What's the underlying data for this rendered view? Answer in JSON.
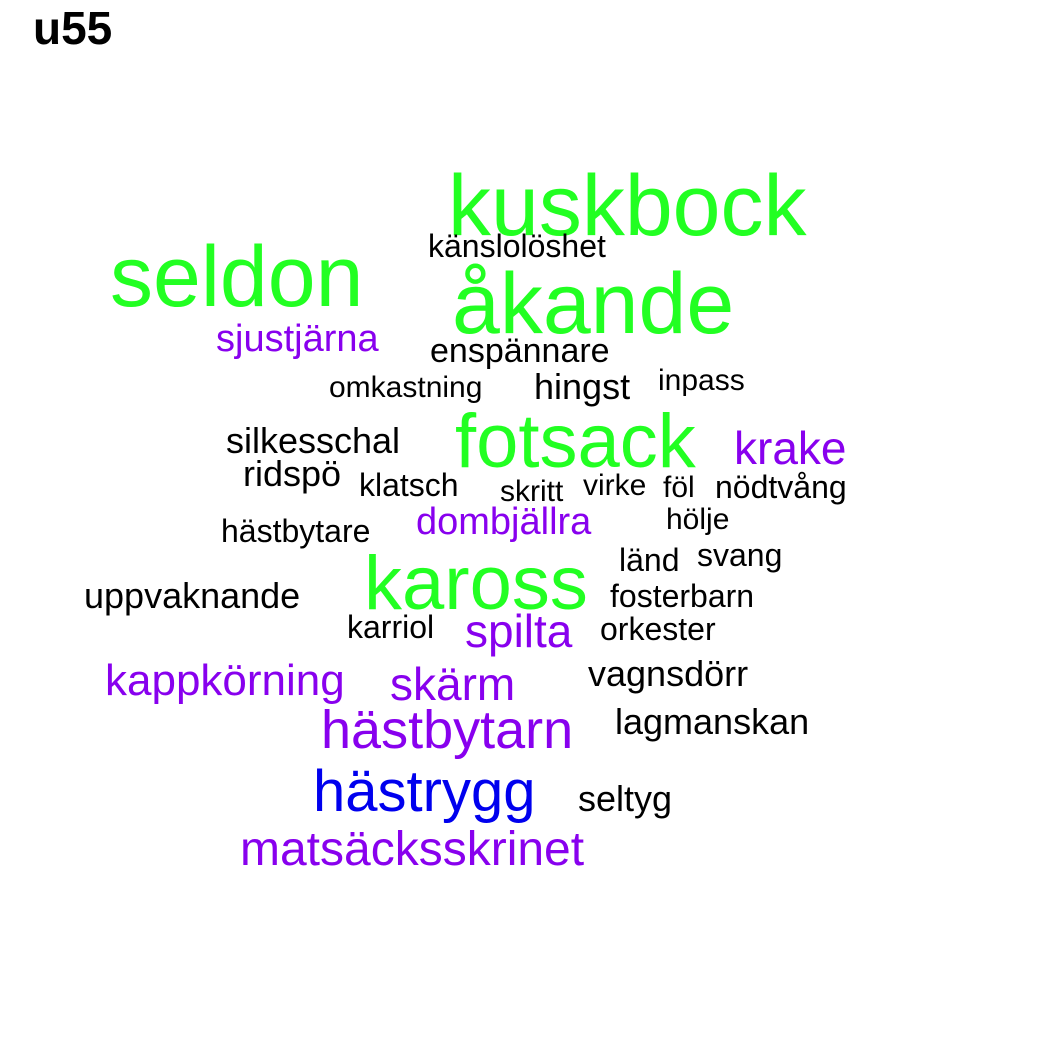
{
  "title": "u55",
  "colors": {
    "green": "#22ff22",
    "purple": "#8800ee",
    "blue": "#0000ee",
    "black": "#000000"
  },
  "words": [
    {
      "text": "kuskbock",
      "color": "#22ff22"
    },
    {
      "text": "seldon",
      "color": "#22ff22"
    },
    {
      "text": "känslolöshet",
      "color": "#000000"
    },
    {
      "text": "åkande",
      "color": "#22ff22"
    },
    {
      "text": "sjustjärna",
      "color": "#8800ee"
    },
    {
      "text": "enspännare",
      "color": "#000000"
    },
    {
      "text": "omkastning",
      "color": "#000000"
    },
    {
      "text": "hingst",
      "color": "#000000"
    },
    {
      "text": "inpass",
      "color": "#000000"
    },
    {
      "text": "silkesschal",
      "color": "#000000"
    },
    {
      "text": "fotsack",
      "color": "#22ff22"
    },
    {
      "text": "krake",
      "color": "#8800ee"
    },
    {
      "text": "ridspö",
      "color": "#000000"
    },
    {
      "text": "klatsch",
      "color": "#000000"
    },
    {
      "text": "skritt",
      "color": "#000000"
    },
    {
      "text": "virke",
      "color": "#000000"
    },
    {
      "text": "föl",
      "color": "#000000"
    },
    {
      "text": "nödtvång",
      "color": "#000000"
    },
    {
      "text": "hästbytare",
      "color": "#000000"
    },
    {
      "text": "dombjällra",
      "color": "#8800ee"
    },
    {
      "text": "hölje",
      "color": "#000000"
    },
    {
      "text": "länd",
      "color": "#000000"
    },
    {
      "text": "svang",
      "color": "#000000"
    },
    {
      "text": "uppvaknande",
      "color": "#000000"
    },
    {
      "text": "kaross",
      "color": "#22ff22"
    },
    {
      "text": "fosterbarn",
      "color": "#000000"
    },
    {
      "text": "karriol",
      "color": "#000000"
    },
    {
      "text": "spilta",
      "color": "#8800ee"
    },
    {
      "text": "orkester",
      "color": "#000000"
    },
    {
      "text": "kappkörning",
      "color": "#8800ee"
    },
    {
      "text": "skärm",
      "color": "#8800ee"
    },
    {
      "text": "vagnsdörr",
      "color": "#000000"
    },
    {
      "text": "hästbytarn",
      "color": "#8800ee"
    },
    {
      "text": "lagmanskan",
      "color": "#000000"
    },
    {
      "text": "hästrygg",
      "color": "#0000ee"
    },
    {
      "text": "seltyg",
      "color": "#000000"
    },
    {
      "text": "matsäcksskrinet",
      "color": "#8800ee"
    }
  ]
}
